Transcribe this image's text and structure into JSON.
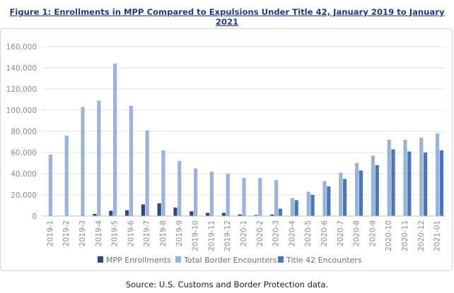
{
  "figure": {
    "title": "Figure 1: Enrollments in MPP Compared to Expulsions Under Title 42, January 2019 to January 2021",
    "source": "Source: U.S. Customs and Border Protection data."
  },
  "colors": {
    "mpp": "#2e4a7d",
    "total": "#9cb3d8",
    "title42": "#4a75b6",
    "axis_text": "#8a8a8a",
    "grid": "#e2e2e2"
  },
  "chart_data": {
    "type": "bar",
    "title": "Figure 1: Enrollments in MPP Compared to Expulsions Under Title 42, January 2019 to January 2021",
    "xlabel": "",
    "ylabel": "",
    "ylim": [
      0,
      160000
    ],
    "yticks": [
      0,
      20000,
      40000,
      60000,
      80000,
      100000,
      120000,
      140000,
      160000
    ],
    "ytick_labels": [
      "0",
      "20,000",
      "40,000",
      "60,000",
      "80,000",
      "100,000",
      "120,000",
      "140,000",
      "160,000"
    ],
    "grid": true,
    "legend_position": "bottom",
    "categories": [
      "2019-1",
      "2019-2",
      "2019-3",
      "2019-4",
      "2019-5",
      "2019-6",
      "2019-7",
      "2019-8",
      "2019-9",
      "2019-10",
      "2019-11",
      "2019-12",
      "2020-1",
      "2020-2",
      "2020-3",
      "2020-4",
      "2020-5",
      "2020-6",
      "2020-7",
      "2020-8",
      "2020-9",
      "2020-10",
      "2020-11",
      "2020-12",
      "2021-01"
    ],
    "series": [
      {
        "name": "MPP Enrollments",
        "color": "#2e4a7d",
        "values": [
          0,
          0,
          0,
          2000,
          5000,
          5500,
          11000,
          12000,
          8000,
          4500,
          3000,
          3000,
          1500,
          1000,
          1500,
          0,
          0,
          0,
          0,
          0,
          0,
          0,
          0,
          0,
          0
        ]
      },
      {
        "name": "Total Border Encounters",
        "color": "#9cb3d8",
        "values": [
          58000,
          76000,
          103000,
          109000,
          144000,
          104000,
          81000,
          62000,
          52000,
          45000,
          42000,
          40000,
          36000,
          36000,
          34000,
          17000,
          23000,
          33000,
          41000,
          50000,
          57000,
          72000,
          72000,
          74000,
          78000
        ]
      },
      {
        "name": "Title 42 Encounters",
        "color": "#4a75b6",
        "values": [
          0,
          0,
          0,
          0,
          0,
          0,
          0,
          0,
          0,
          0,
          0,
          0,
          0,
          0,
          7000,
          15000,
          20000,
          28000,
          35000,
          43000,
          48000,
          63000,
          61000,
          60000,
          62000
        ]
      }
    ]
  }
}
